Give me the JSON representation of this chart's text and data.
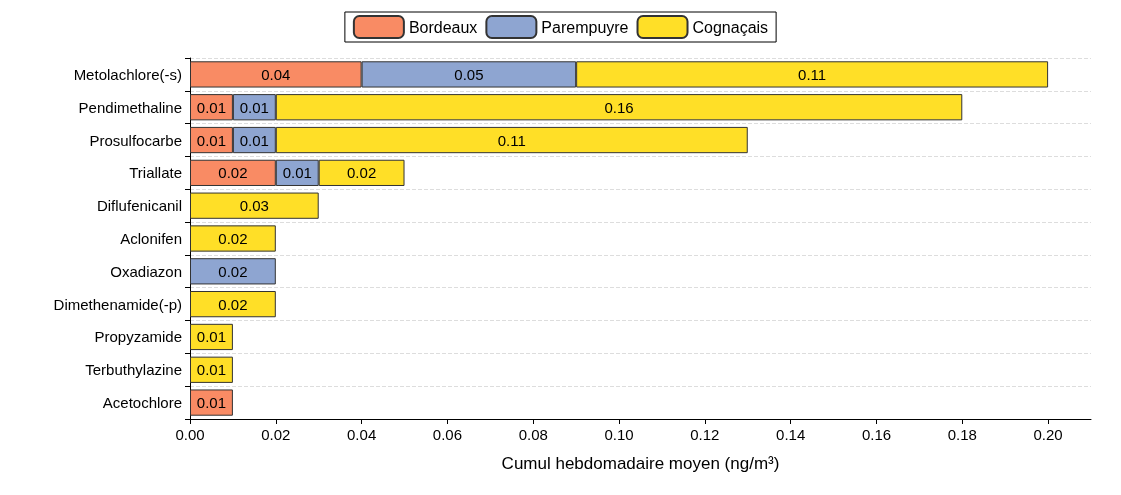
{
  "chart_data": {
    "type": "bar",
    "orientation": "horizontal",
    "stacked": true,
    "xlabel": "Cumul hebdomadaire moyen (ng/m³)",
    "categories": [
      "Metolachlore(-s)",
      "Pendimethaline",
      "Prosulfocarbe",
      "Triallate",
      "Diflufenicanil",
      "Aclonifen",
      "Oxadiazon",
      "Dimethenamide(-p)",
      "Propyzamide",
      "Terbuthylazine",
      "Acetochlore"
    ],
    "series": [
      {
        "name": "Bordeaux",
        "color": "#f98b64",
        "values": [
          0.04,
          0.01,
          0.01,
          0.02,
          null,
          null,
          null,
          null,
          null,
          null,
          0.01
        ]
      },
      {
        "name": "Parempuyre",
        "color": "#8ea5d1",
        "values": [
          0.05,
          0.01,
          0.01,
          0.01,
          null,
          null,
          0.02,
          null,
          null,
          null,
          null
        ]
      },
      {
        "name": "Cognaçais",
        "color": "#ffdf27",
        "values": [
          0.11,
          0.16,
          0.11,
          0.02,
          0.03,
          0.02,
          null,
          0.02,
          0.01,
          0.01,
          null
        ]
      }
    ],
    "xlim": [
      0,
      0.21
    ],
    "xticks": [
      {
        "value": 0,
        "label": "0.00"
      },
      {
        "value": 0.02,
        "label": "0.02"
      },
      {
        "value": 0.04,
        "label": "0.04"
      },
      {
        "value": 0.06,
        "label": "0.06"
      },
      {
        "value": 0.08,
        "label": "0.08"
      },
      {
        "value": 0.1,
        "label": "0.10"
      },
      {
        "value": 0.12,
        "label": "0.12"
      },
      {
        "value": 0.14,
        "label": "0.14"
      },
      {
        "value": 0.16,
        "label": "0.16"
      },
      {
        "value": 0.18,
        "label": "0.18"
      },
      {
        "value": 0.2,
        "label": "0.20"
      }
    ],
    "grid": "y",
    "legend": "top",
    "data_labels": true
  }
}
